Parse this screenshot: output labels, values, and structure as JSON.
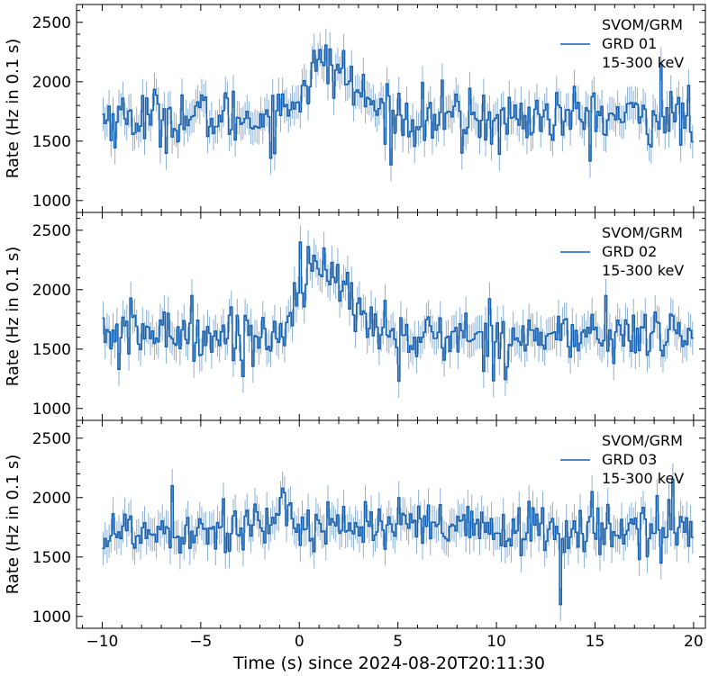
{
  "figure": {
    "xlabel": "Time (s) since 2024-08-20T20:11:30",
    "ylabel": "Rate (Hz in 0.1 s)"
  },
  "chart_data": [
    {
      "type": "line",
      "step": true,
      "error_bars": true,
      "legend": {
        "position": "top-right",
        "lines": [
          "SVOM/GRM",
          "GRD 01",
          "15-300 keV"
        ]
      },
      "ylabel": "Rate (Hz in 0.1 s)",
      "xlim": [
        -11.3,
        20.6
      ],
      "ylim": [
        900,
        2650
      ],
      "xticks": [
        -10,
        -5,
        0,
        5,
        10,
        15,
        20
      ],
      "yticks": [
        1000,
        1500,
        2000,
        2500
      ],
      "color": "#1560b0",
      "series": [
        {
          "name": "GRD 01",
          "bin_width_s": 0.1,
          "x_start": -10,
          "x_end": 19.9,
          "profile_keypoints": [
            [
              -10,
              1700
            ],
            [
              -1.5,
              1700
            ],
            [
              -0.5,
              1800
            ],
            [
              0.5,
              2050
            ],
            [
              1,
              2150
            ],
            [
              2,
              2100
            ],
            [
              3,
              1900
            ],
            [
              4,
              1750
            ],
            [
              5,
              1700
            ],
            [
              19.9,
              1700
            ]
          ],
          "typical_scatter": 160,
          "error_bar_halfwidth": 140,
          "notable_peaks": [
            [
              1.0,
              2270
            ],
            [
              18.3,
              2150
            ]
          ],
          "notable_dips": [
            [
              10.1,
              1390
            ],
            [
              8.2,
              1400
            ]
          ]
        }
      ]
    },
    {
      "type": "line",
      "step": true,
      "error_bars": true,
      "legend": {
        "position": "top-right",
        "lines": [
          "SVOM/GRM",
          "GRD 02",
          "15-300 keV"
        ]
      },
      "ylabel": "Rate (Hz in 0.1 s)",
      "xlim": [
        -11.3,
        20.6
      ],
      "ylim": [
        900,
        2650
      ],
      "xticks": [
        -10,
        -5,
        0,
        5,
        10,
        15,
        20
      ],
      "yticks": [
        1000,
        1500,
        2000,
        2500
      ],
      "color": "#1560b0",
      "series": [
        {
          "name": "GRD 02",
          "bin_width_s": 0.1,
          "x_start": -10,
          "x_end": 19.9,
          "profile_keypoints": [
            [
              -10,
              1650
            ],
            [
              -1.5,
              1600
            ],
            [
              -0.5,
              1750
            ],
            [
              0,
              2100
            ],
            [
              0.5,
              2200
            ],
            [
              1.5,
              2100
            ],
            [
              2.5,
              1950
            ],
            [
              3.5,
              1750
            ],
            [
              5,
              1600
            ],
            [
              19.9,
              1620
            ]
          ],
          "typical_scatter": 150,
          "error_bar_halfwidth": 140,
          "notable_peaks": [
            [
              0.0,
              2400
            ],
            [
              15.5,
              1950
            ],
            [
              -5.5,
              1950
            ]
          ],
          "notable_dips": [
            [
              5.0,
              1230
            ],
            [
              -9.2,
              1330
            ]
          ]
        }
      ]
    },
    {
      "type": "line",
      "step": true,
      "error_bars": true,
      "legend": {
        "position": "top-right",
        "lines": [
          "SVOM/GRM",
          "GRD 03",
          "15-300 keV"
        ]
      },
      "ylabel": "Rate (Hz in 0.1 s)",
      "xlim": [
        -11.3,
        20.6
      ],
      "ylim": [
        900,
        2650
      ],
      "xticks": [
        -10,
        -5,
        0,
        5,
        10,
        15,
        20
      ],
      "yticks": [
        1000,
        1500,
        2000,
        2500
      ],
      "color": "#1560b0",
      "series": [
        {
          "name": "GRD 03",
          "bin_width_s": 0.1,
          "x_start": -10,
          "x_end": 19.9,
          "profile_keypoints": [
            [
              -10,
              1700
            ],
            [
              -5,
              1750
            ],
            [
              0,
              1800
            ],
            [
              2,
              1780
            ],
            [
              5,
              1750
            ],
            [
              10,
              1720
            ],
            [
              19.9,
              1720
            ]
          ],
          "typical_scatter": 150,
          "error_bar_halfwidth": 140,
          "notable_peaks": [
            [
              18.9,
              2150
            ],
            [
              14.8,
              2050
            ],
            [
              -6.5,
              2100
            ]
          ],
          "notable_dips": [
            [
              13.2,
              1100
            ],
            [
              18.3,
              1450
            ]
          ]
        }
      ]
    }
  ]
}
